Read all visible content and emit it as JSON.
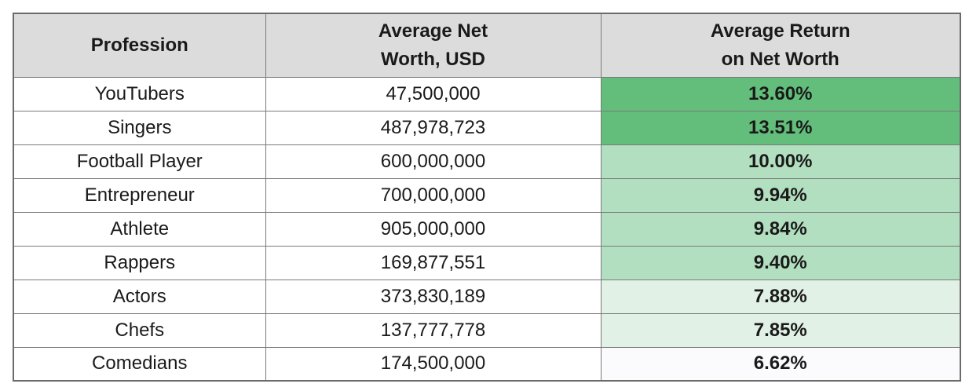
{
  "chart_data": {
    "type": "table",
    "columns": [
      "Profession",
      "Average Net\nWorth, USD",
      "Average Return\non Net Worth"
    ],
    "rows": [
      {
        "profession": "YouTubers",
        "net_worth": "47,500,000",
        "return": "13.60%",
        "color": "#63be7b"
      },
      {
        "profession": "Singers",
        "net_worth": "487,978,723",
        "return": "13.51%",
        "color": "#63be7b"
      },
      {
        "profession": "Football Player",
        "net_worth": "600,000,000",
        "return": "10.00%",
        "color": "#b2dfc0"
      },
      {
        "profession": "Entrepreneur",
        "net_worth": "700,000,000",
        "return": "9.94%",
        "color": "#b2dfc0"
      },
      {
        "profession": "Athlete",
        "net_worth": "905,000,000",
        "return": "9.84%",
        "color": "#b2dfc0"
      },
      {
        "profession": "Rappers",
        "net_worth": "169,877,551",
        "return": "9.40%",
        "color": "#b2dfc0"
      },
      {
        "profession": "Actors",
        "net_worth": "373,830,189",
        "return": "7.88%",
        "color": "#e1f1e6"
      },
      {
        "profession": "Chefs",
        "net_worth": "137,777,778",
        "return": "7.85%",
        "color": "#e1f1e6"
      },
      {
        "profession": "Comedians",
        "net_worth": "174,500,000",
        "return": "6.62%",
        "color": "#fbfbfd"
      }
    ]
  }
}
